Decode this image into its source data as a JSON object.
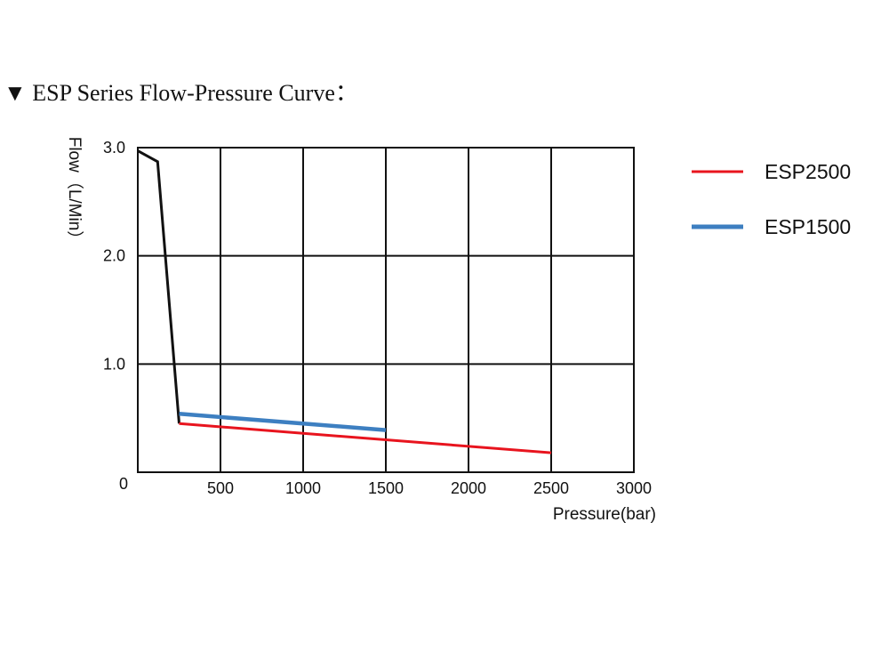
{
  "header": {
    "marker": "▼",
    "title": "ESP Series Flow-Pressure Curve："
  },
  "chart_data": {
    "type": "line",
    "title": "ESP Series Flow-Pressure Curve：",
    "xlabel": "Pressure(bar)",
    "ylabel": "Flow（L/Min）",
    "xlim": [
      0,
      3000
    ],
    "ylim": [
      0,
      3.0
    ],
    "x_ticks": [
      500,
      1000,
      1500,
      2000,
      2500,
      3000
    ],
    "x_tick_labels": [
      "500",
      "1000",
      "1500",
      "2000",
      "2500",
      "3000"
    ],
    "y_ticks": [
      1.0,
      2.0,
      3.0
    ],
    "y_tick_labels": [
      "1.0",
      "2.0",
      "3.0"
    ],
    "origin_label": "0",
    "grid": true,
    "legend_position": "right",
    "series": [
      {
        "color": "#111111",
        "points": [
          [
            0,
            2.97
          ],
          [
            120,
            2.87
          ],
          [
            250,
            0.45
          ]
        ]
      },
      {
        "name": "ESP2500",
        "color": "#e8141e",
        "points": [
          [
            250,
            0.45
          ],
          [
            2500,
            0.18
          ]
        ]
      },
      {
        "name": "ESP1500",
        "color": "#3d7fc1",
        "points": [
          [
            250,
            0.54
          ],
          [
            1500,
            0.39
          ]
        ]
      }
    ]
  }
}
